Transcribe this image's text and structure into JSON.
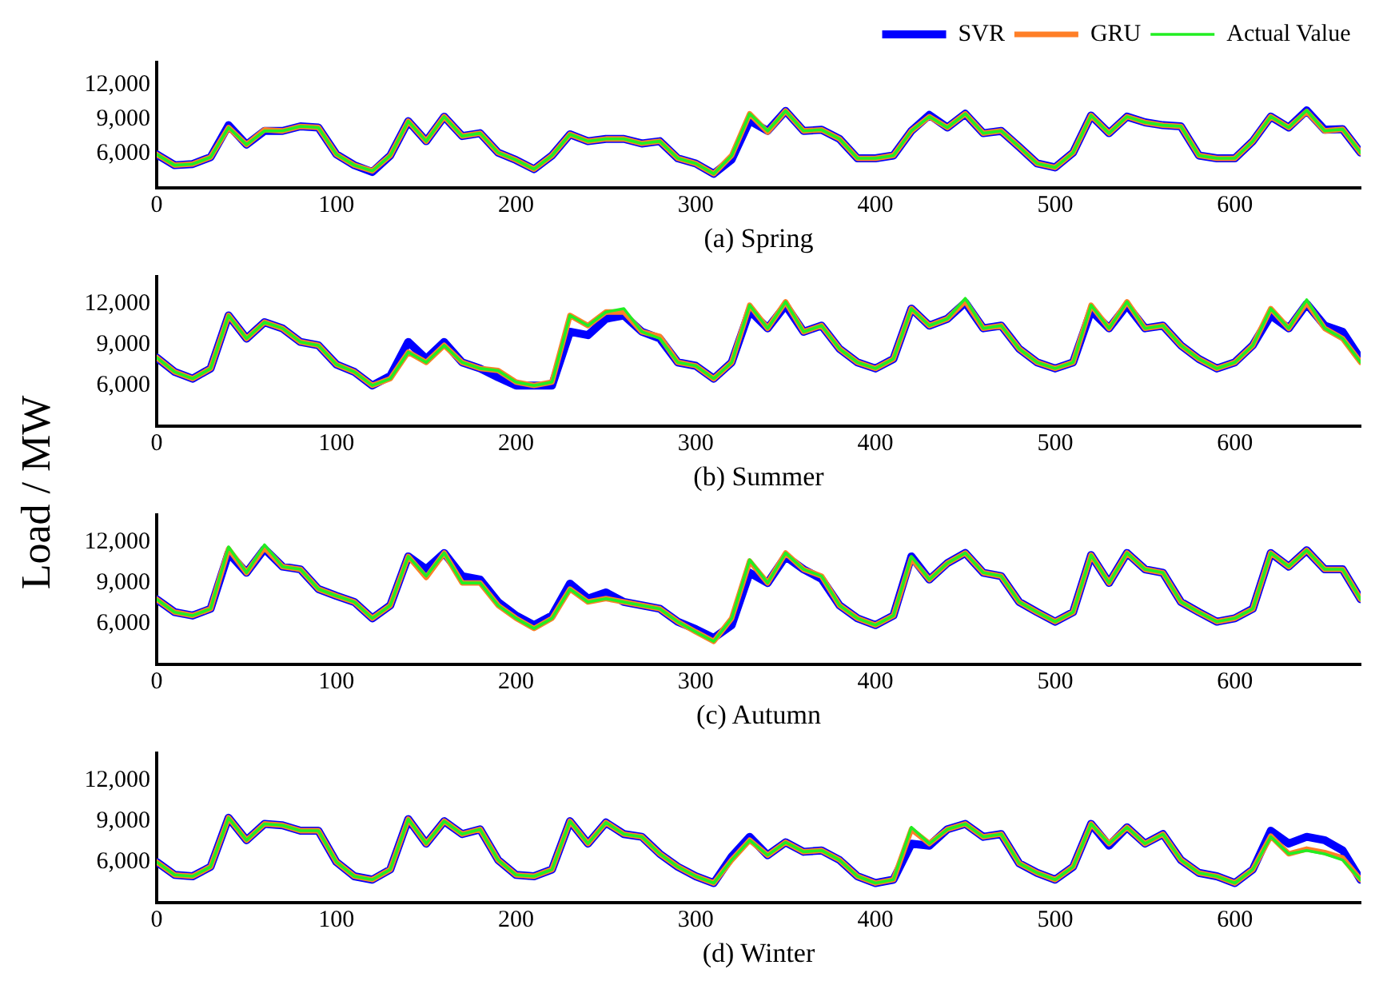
{
  "chart_data": [
    {
      "type": "line",
      "xlabel": "(a) Spring",
      "legend": "top right",
      "grid": false,
      "marker": "none",
      "line_style": "solid",
      "x": [
        0,
        10,
        20,
        30,
        40,
        50,
        60,
        70,
        80,
        90,
        100,
        110,
        120,
        130,
        140,
        150,
        160,
        170,
        180,
        190,
        200,
        210,
        220,
        230,
        240,
        250,
        260,
        270,
        280,
        290,
        300,
        310,
        320,
        330,
        340,
        350,
        360,
        370,
        380,
        390,
        400,
        410,
        420,
        430,
        440,
        450,
        460,
        470,
        480,
        490,
        500,
        510,
        520,
        530,
        540,
        550,
        560,
        570,
        580,
        590,
        600,
        610,
        620,
        630,
        640,
        650,
        660,
        670
      ],
      "xlim": [
        0,
        670
      ],
      "xticks": [
        0,
        100,
        200,
        300,
        400,
        500,
        600
      ],
      "ylim": [
        3000,
        14000
      ],
      "yticks": [
        {
          "value": 6000,
          "label": "6,000"
        },
        {
          "value": 9000,
          "label": "9,000"
        },
        {
          "value": 12000,
          "label": "12,000"
        }
      ],
      "series": [
        {
          "name": "SVR",
          "color": "#0000ff",
          "values": [
            5950,
            5000,
            5100,
            5700,
            8500,
            6800,
            8000,
            8000,
            8400,
            8300,
            5950,
            5000,
            4400,
            5850,
            8850,
            7100,
            9250,
            7550,
            7800,
            6100,
            5450,
            4650,
            5850,
            7700,
            7100,
            7300,
            7300,
            6900,
            7100,
            5600,
            5150,
            4250,
            5500,
            8900,
            8000,
            9750,
            8000,
            8100,
            7300,
            5600,
            5600,
            5850,
            8000,
            9400,
            8300,
            9500,
            7800,
            8000,
            6600,
            5150,
            4800,
            6100,
            9350,
            7800,
            9250,
            8750,
            8500,
            8400,
            5850,
            5600,
            5600,
            7100,
            9250,
            8300,
            9800,
            8100,
            8150,
            6100
          ]
        },
        {
          "name": "GRU",
          "color": "#ff7f27",
          "values": [
            5950,
            5000,
            5100,
            5700,
            8300,
            6800,
            8100,
            8000,
            8400,
            8300,
            5950,
            5000,
            4500,
            5850,
            8850,
            7100,
            9250,
            7550,
            7800,
            6100,
            5450,
            4650,
            5850,
            7700,
            7100,
            7300,
            7300,
            6900,
            7100,
            5600,
            5150,
            4250,
            5850,
            9500,
            7900,
            9750,
            8000,
            8100,
            7300,
            5600,
            5600,
            5850,
            8000,
            9250,
            8300,
            9500,
            7800,
            8000,
            6600,
            5150,
            4800,
            6100,
            9350,
            7800,
            9250,
            8750,
            8500,
            8400,
            5850,
            5600,
            5600,
            7100,
            9250,
            8300,
            9700,
            8000,
            8150,
            6100
          ]
        },
        {
          "name": "Actual Value",
          "color": "#22ee22",
          "values": [
            5950,
            5000,
            5100,
            5700,
            8300,
            6800,
            8000,
            8000,
            8400,
            8300,
            5950,
            5000,
            4500,
            5850,
            8850,
            7100,
            9250,
            7550,
            7800,
            6100,
            5450,
            4650,
            5850,
            7700,
            7100,
            7300,
            7300,
            6900,
            7100,
            5600,
            5150,
            4250,
            5850,
            9500,
            8000,
            9750,
            8000,
            8100,
            7300,
            5600,
            5600,
            5850,
            8000,
            9250,
            8300,
            9500,
            7800,
            8000,
            6600,
            5150,
            4800,
            6100,
            9350,
            7800,
            9250,
            8750,
            8500,
            8400,
            5850,
            5600,
            5600,
            7100,
            9250,
            8300,
            9800,
            8000,
            8150,
            6100
          ]
        }
      ]
    },
    {
      "type": "line",
      "xlabel": "(b) Summer",
      "ylabel": "Load / MW",
      "grid": false,
      "marker": "none",
      "line_style": "solid",
      "x": [
        0,
        10,
        20,
        30,
        40,
        50,
        60,
        70,
        80,
        90,
        100,
        110,
        120,
        130,
        140,
        150,
        160,
        170,
        180,
        190,
        200,
        210,
        220,
        230,
        240,
        250,
        260,
        270,
        280,
        290,
        300,
        310,
        320,
        330,
        340,
        350,
        360,
        370,
        380,
        390,
        400,
        410,
        420,
        430,
        440,
        450,
        460,
        470,
        480,
        490,
        500,
        510,
        520,
        530,
        540,
        550,
        560,
        570,
        580,
        590,
        600,
        610,
        620,
        630,
        640,
        650,
        660,
        670
      ],
      "xlim": [
        0,
        670
      ],
      "xticks": [
        0,
        100,
        200,
        300,
        400,
        500,
        600
      ],
      "ylim": [
        3000,
        14000
      ],
      "yticks": [
        {
          "value": 6000,
          "label": "6,000"
        },
        {
          "value": 9000,
          "label": "9,000"
        },
        {
          "value": 12000,
          "label": "12,000"
        }
      ],
      "series": [
        {
          "color": "#0000ff",
          "values": [
            8050,
            7000,
            6500,
            7250,
            11150,
            9450,
            10650,
            10200,
            9200,
            8950,
            7550,
            7000,
            6000,
            6700,
            9200,
            7950,
            9200,
            7700,
            7250,
            6600,
            6000,
            6000,
            6000,
            9950,
            9700,
            10900,
            11150,
            9950,
            9450,
            7700,
            7450,
            6500,
            7700,
            11500,
            10200,
            11900,
            9950,
            10400,
            8700,
            7700,
            7250,
            7950,
            11650,
            10400,
            10900,
            12100,
            10200,
            10400,
            8700,
            7700,
            7250,
            7700,
            11500,
            10200,
            11900,
            10200,
            10400,
            8950,
            7950,
            7250,
            7700,
            8950,
            11150,
            10200,
            12000,
            10400,
            9950,
            7950
          ]
        },
        {
          "color": "#ff7f27",
          "values": [
            8050,
            7000,
            6500,
            7250,
            11150,
            9450,
            10650,
            10200,
            9200,
            8950,
            7550,
            7000,
            6000,
            6500,
            8450,
            7700,
            8950,
            7700,
            7250,
            7100,
            6250,
            6000,
            6250,
            11150,
            10400,
            11400,
            11400,
            9950,
            9600,
            7700,
            7450,
            6500,
            7700,
            11900,
            10200,
            12150,
            9950,
            10400,
            8700,
            7700,
            7250,
            7950,
            11650,
            10400,
            10900,
            12200,
            10200,
            10400,
            8700,
            7700,
            7250,
            7700,
            11900,
            10200,
            12150,
            10200,
            10400,
            8950,
            7950,
            7250,
            7700,
            8950,
            11650,
            10200,
            12100,
            10200,
            9450,
            7700
          ]
        },
        {
          "color": "#22ee22",
          "values": [
            8050,
            7000,
            6500,
            7250,
            11150,
            9450,
            10650,
            10200,
            9200,
            8950,
            7550,
            7000,
            6000,
            6500,
            8450,
            7700,
            8950,
            7700,
            7250,
            7100,
            6250,
            6000,
            6250,
            11150,
            10400,
            11400,
            11650,
            9950,
            9450,
            7700,
            7450,
            6500,
            7700,
            11900,
            10200,
            12150,
            9950,
            10400,
            8700,
            7700,
            7250,
            7950,
            11650,
            10400,
            10900,
            12400,
            10200,
            10400,
            8700,
            7700,
            7250,
            7700,
            11900,
            10200,
            12150,
            10200,
            10400,
            8950,
            7950,
            7250,
            7700,
            8950,
            11650,
            10200,
            12300,
            10200,
            9450,
            7700
          ]
        }
      ]
    },
    {
      "type": "line",
      "xlabel": "(c) Autumn",
      "grid": false,
      "marker": "none",
      "line_style": "solid",
      "x": [
        0,
        10,
        20,
        30,
        40,
        50,
        60,
        70,
        80,
        90,
        100,
        110,
        120,
        130,
        140,
        150,
        160,
        170,
        180,
        190,
        200,
        210,
        220,
        230,
        240,
        250,
        260,
        270,
        280,
        290,
        300,
        310,
        320,
        330,
        340,
        350,
        360,
        370,
        380,
        390,
        400,
        410,
        420,
        430,
        440,
        450,
        460,
        470,
        480,
        490,
        500,
        510,
        520,
        530,
        540,
        550,
        560,
        570,
        580,
        590,
        600,
        610,
        620,
        630,
        640,
        650,
        660,
        670
      ],
      "xlim": [
        0,
        670
      ],
      "xticks": [
        0,
        100,
        200,
        300,
        400,
        500,
        600
      ],
      "ylim": [
        3000,
        14000
      ],
      "yticks": [
        {
          "value": 6000,
          "label": "6,000"
        },
        {
          "value": 9000,
          "label": "9,000"
        },
        {
          "value": 12000,
          "label": "12,000"
        }
      ],
      "series": [
        {
          "color": "#0000ff",
          "values": [
            7800,
            6850,
            6600,
            7100,
            11200,
            9750,
            11500,
            10200,
            10000,
            8550,
            8050,
            7600,
            6400,
            7350,
            10950,
            10000,
            11200,
            9500,
            9250,
            7600,
            6600,
            5900,
            6600,
            8950,
            7850,
            8300,
            7600,
            7350,
            7100,
            6150,
            5600,
            4950,
            5900,
            9750,
            9000,
            10950,
            10000,
            9300,
            7350,
            6400,
            5900,
            6600,
            10950,
            9250,
            10450,
            11200,
            9750,
            9500,
            7600,
            6850,
            6150,
            6850,
            11050,
            9000,
            11200,
            10000,
            9750,
            7600,
            6850,
            6150,
            6400,
            7100,
            11200,
            10200,
            11400,
            10000,
            10000,
            7800
          ]
        },
        {
          "color": "#ff7f27",
          "values": [
            7800,
            6850,
            6600,
            7100,
            11500,
            9750,
            11600,
            10200,
            10000,
            8550,
            8050,
            7600,
            6400,
            7350,
            10950,
            9400,
            11200,
            9000,
            9000,
            7350,
            6400,
            5650,
            6400,
            8550,
            7600,
            7850,
            7600,
            7350,
            7100,
            6150,
            5400,
            4700,
            6400,
            10600,
            9000,
            11200,
            10000,
            9500,
            7350,
            6400,
            5900,
            6600,
            10800,
            9250,
            10450,
            11200,
            9750,
            9500,
            7600,
            6850,
            6150,
            6850,
            11050,
            9000,
            11200,
            10000,
            9750,
            7600,
            6850,
            6150,
            6400,
            7100,
            11200,
            10200,
            11400,
            10000,
            10000,
            7800
          ]
        },
        {
          "color": "#22ee22",
          "values": [
            7800,
            6850,
            6600,
            7100,
            11650,
            9750,
            11800,
            10200,
            10000,
            8550,
            8050,
            7600,
            6400,
            7350,
            10950,
            9500,
            11200,
            9000,
            9000,
            7350,
            6400,
            5650,
            6400,
            8550,
            7600,
            7850,
            7600,
            7350,
            7100,
            6150,
            5400,
            4700,
            6400,
            10700,
            9000,
            11200,
            10000,
            9500,
            7350,
            6400,
            5900,
            6600,
            10950,
            9250,
            10450,
            11200,
            9750,
            9500,
            7600,
            6850,
            6150,
            6850,
            11050,
            9000,
            11200,
            10000,
            9750,
            7600,
            6850,
            6150,
            6400,
            7100,
            11200,
            10200,
            11400,
            10000,
            10000,
            7800
          ]
        }
      ]
    },
    {
      "type": "line",
      "xlabel": "(d) Winter",
      "grid": false,
      "marker": "none",
      "line_style": "solid",
      "x": [
        0,
        10,
        20,
        30,
        40,
        50,
        60,
        70,
        80,
        90,
        100,
        110,
        120,
        130,
        140,
        150,
        160,
        170,
        180,
        190,
        200,
        210,
        220,
        230,
        240,
        250,
        260,
        270,
        280,
        290,
        300,
        310,
        320,
        330,
        340,
        350,
        360,
        370,
        380,
        390,
        400,
        410,
        420,
        430,
        440,
        450,
        460,
        470,
        480,
        490,
        500,
        510,
        520,
        530,
        540,
        550,
        560,
        570,
        580,
        590,
        600,
        610,
        620,
        630,
        640,
        650,
        660,
        670
      ],
      "xlim": [
        0,
        670
      ],
      "xticks": [
        0,
        100,
        200,
        300,
        400,
        500,
        600
      ],
      "ylim": [
        3000,
        14000
      ],
      "yticks": [
        {
          "value": 6000,
          "label": "6,000"
        },
        {
          "value": 9000,
          "label": "9,000"
        },
        {
          "value": 12000,
          "label": "12,000"
        }
      ],
      "series": [
        {
          "color": "#0000ff",
          "values": [
            6000,
            5050,
            4950,
            5650,
            9250,
            7600,
            8800,
            8700,
            8300,
            8300,
            6000,
            4950,
            4700,
            5450,
            9150,
            7350,
            9000,
            8050,
            8400,
            6150,
            5050,
            4950,
            5450,
            9000,
            7350,
            8900,
            8050,
            7850,
            6600,
            5650,
            4950,
            4450,
            6400,
            7850,
            6500,
            7450,
            6750,
            6850,
            6150,
            4950,
            4450,
            4700,
            7350,
            7200,
            8400,
            8800,
            7850,
            8050,
            5900,
            5200,
            4700,
            5650,
            8800,
            7200,
            8550,
            7350,
            8050,
            6150,
            5200,
            4950,
            4450,
            5450,
            8300,
            7350,
            7850,
            7600,
            6850,
            4700
          ]
        },
        {
          "color": "#ff7f27",
          "values": [
            6000,
            5050,
            4950,
            5650,
            9250,
            7600,
            8800,
            8700,
            8300,
            8300,
            6000,
            4950,
            4700,
            5450,
            9150,
            7350,
            9000,
            8050,
            8400,
            6150,
            5050,
            4950,
            5450,
            9000,
            7350,
            8900,
            8050,
            7850,
            6600,
            5650,
            4950,
            4450,
            6150,
            7600,
            6500,
            7450,
            6750,
            6850,
            6150,
            4950,
            4450,
            4700,
            8400,
            7350,
            8400,
            8800,
            7850,
            8050,
            5900,
            5200,
            4700,
            5650,
            8800,
            7350,
            8550,
            7350,
            8050,
            6150,
            5200,
            4950,
            4450,
            5450,
            7900,
            6600,
            6950,
            6700,
            6300,
            4700
          ]
        },
        {
          "color": "#22ee22",
          "values": [
            6000,
            5050,
            4950,
            5650,
            9250,
            7600,
            8800,
            8700,
            8300,
            8300,
            6000,
            4950,
            4700,
            5450,
            9150,
            7350,
            9000,
            8050,
            8400,
            6150,
            5050,
            4950,
            5450,
            9000,
            7350,
            8900,
            8050,
            7850,
            6600,
            5650,
            4950,
            4450,
            6150,
            7600,
            6500,
            7450,
            6750,
            6850,
            6150,
            4950,
            4450,
            4700,
            8550,
            7350,
            8400,
            8800,
            7850,
            8050,
            5900,
            5200,
            4700,
            5650,
            8800,
            7350,
            8550,
            7350,
            8050,
            6150,
            5200,
            4950,
            4450,
            5450,
            7850,
            6600,
            6850,
            6600,
            6150,
            4700
          ]
        }
      ]
    }
  ]
}
